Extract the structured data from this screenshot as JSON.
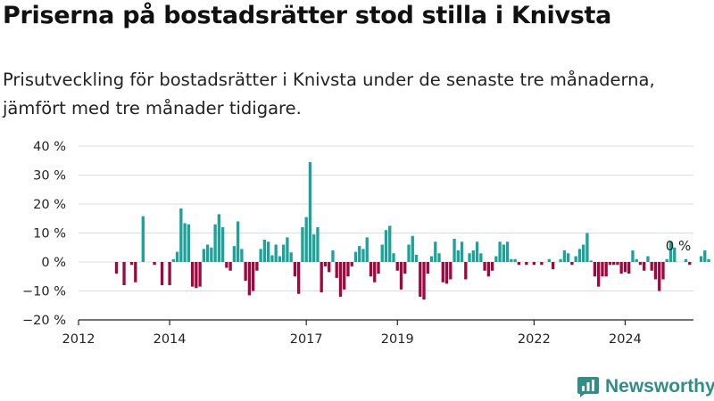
{
  "title": "Priserna på bostadsrätter stod stilla i Knivsta",
  "subtitle": "Prisutveckling för bostadsrätter i Knivsta under de senaste tre månaderna, jämfört med tre månader tidigare.",
  "brand": {
    "name": "Newsworthy",
    "icon": "chart-bubble-icon"
  },
  "colors": {
    "positive": "#1ba39a",
    "negative": "#a0073f",
    "grid": "#dddddd",
    "axis": "#222222",
    "brand": "#2f8f87"
  },
  "chart_data": {
    "type": "bar",
    "title": "",
    "xlabel": "",
    "ylabel": "",
    "unit": "%",
    "ylim": [
      -20,
      40
    ],
    "yticks": [
      40,
      30,
      20,
      10,
      0,
      -10,
      -20
    ],
    "ytick_labels": [
      "40 %",
      "30 %",
      "20 %",
      "10 %",
      "0 %",
      "−10 %",
      "−20 %"
    ],
    "x_domain": [
      "2012-01",
      "2025-07"
    ],
    "xticks": [
      {
        "value": "2012-01",
        "label": "2012"
      },
      {
        "value": "2014-01",
        "label": "2014"
      },
      {
        "value": "2017-01",
        "label": "2017"
      },
      {
        "value": "2019-01",
        "label": "2019"
      },
      {
        "value": "2022-01",
        "label": "2022"
      },
      {
        "value": "2024-01",
        "label": "2024"
      }
    ],
    "grid": true,
    "annotation": {
      "text": "0 %",
      "x": "2025-03"
    },
    "start_month": "2012-11",
    "values": [
      -4,
      0,
      -8,
      0,
      -1,
      -7,
      0,
      15.8,
      0,
      0,
      -1,
      0,
      -8,
      0,
      -8,
      1,
      3.5,
      18.5,
      13.4,
      13,
      -8.5,
      -9,
      -8.5,
      4.5,
      6,
      5,
      13,
      16.5,
      12,
      -2,
      -3,
      5.5,
      14,
      4.5,
      -6.5,
      -11.5,
      -10,
      -3,
      4.5,
      7.7,
      7,
      2.3,
      6,
      2,
      6,
      8.5,
      3.3,
      -5,
      -11,
      12,
      15.5,
      34.5,
      9.5,
      12,
      -10.5,
      -1.5,
      -3.5,
      4,
      -5.5,
      -12,
      -9.5,
      -5,
      -1.5,
      3.5,
      5.5,
      4.5,
      8.5,
      -5,
      -7,
      -4,
      6,
      11,
      12.5,
      3,
      -3,
      -9.5,
      -4,
      6,
      9,
      2.5,
      -12,
      -13,
      -4,
      2,
      7,
      3,
      -7,
      -7.5,
      -6,
      8,
      4,
      7,
      -6,
      3,
      4,
      7,
      3,
      -3,
      -5,
      -3,
      2,
      7,
      6,
      7,
      1,
      1,
      -1,
      0,
      -1,
      0,
      -1,
      0,
      -1,
      0,
      1,
      -2.5,
      0,
      1,
      4,
      3,
      -1,
      2,
      4.5,
      6,
      10,
      0.5,
      -5,
      -8.5,
      -5,
      -5,
      -1,
      -1,
      -1,
      -4,
      -3.5,
      -4,
      4,
      1,
      -1,
      -3,
      2,
      -3,
      -6,
      -10,
      -6,
      1,
      7,
      5,
      0,
      0,
      1,
      -1,
      0,
      0,
      2,
      4,
      1
    ]
  }
}
